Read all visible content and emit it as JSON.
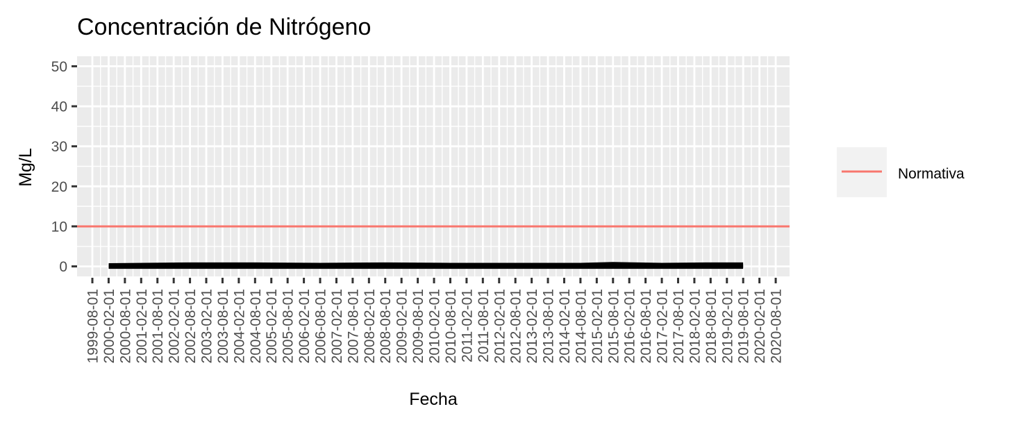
{
  "chart_data": {
    "type": "line",
    "title": "Concentración de Nitrógeno",
    "xlabel": "Fecha",
    "ylabel": "Mg/L",
    "ylim": [
      -2.5,
      52.5
    ],
    "y_ticks": [
      0,
      10,
      20,
      30,
      40,
      50
    ],
    "x_ticks": [
      "1999-08-01",
      "2000-02-01",
      "2000-08-01",
      "2001-02-01",
      "2001-08-01",
      "2002-02-01",
      "2002-08-01",
      "2003-02-01",
      "2003-08-01",
      "2004-02-01",
      "2004-08-01",
      "2005-02-01",
      "2005-08-01",
      "2006-02-01",
      "2006-08-01",
      "2007-02-01",
      "2007-08-01",
      "2008-02-01",
      "2008-08-01",
      "2009-02-01",
      "2009-08-01",
      "2010-02-01",
      "2010-08-01",
      "2011-02-01",
      "2011-08-01",
      "2012-02-01",
      "2012-08-01",
      "2013-02-01",
      "2013-08-01",
      "2014-02-01",
      "2014-08-01",
      "2015-02-01",
      "2015-08-01",
      "2016-02-01",
      "2016-08-01",
      "2017-02-01",
      "2017-08-01",
      "2018-02-01",
      "2018-08-01",
      "2019-02-01",
      "2019-08-01",
      "2020-02-01",
      "2020-08-01"
    ],
    "grid": true,
    "legend_position": "right",
    "series": [
      {
        "name": "Normativa",
        "kind": "hline",
        "y": 10,
        "color": "#F8766D"
      },
      {
        "kind": "line",
        "color": "#000000",
        "x_range": [
          "2000-02-01",
          "2019-08-01"
        ],
        "x": [
          "2000-02-01",
          "2002-08-01",
          "2004-08-01",
          "2006-08-01",
          "2008-08-01",
          "2010-08-01",
          "2012-08-01",
          "2014-08-01",
          "2015-08-01",
          "2017-02-01",
          "2018-08-01",
          "2019-08-01"
        ],
        "y": [
          0.1,
          0.3,
          0.3,
          0.2,
          0.3,
          0.2,
          0.2,
          0.2,
          0.4,
          0.2,
          0.3,
          0.3
        ]
      }
    ]
  },
  "legend": {
    "items": [
      {
        "label": "Normativa",
        "color": "#F8766D"
      }
    ]
  },
  "colors": {
    "panel": "#EBEBEB",
    "grid": "#FFFFFF",
    "tick": "#333333",
    "tick_text": "#4D4D4D"
  }
}
